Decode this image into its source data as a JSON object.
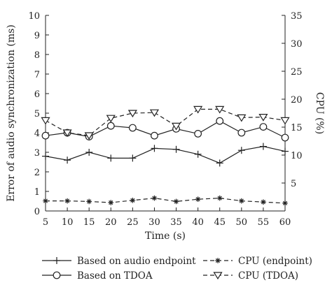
{
  "chart_data": {
    "type": "line",
    "x": [
      5,
      10,
      15,
      20,
      25,
      30,
      35,
      40,
      45,
      50,
      55,
      60
    ],
    "x_ticks": [
      "5",
      "10",
      "15",
      "20",
      "25",
      "30",
      "35",
      "40",
      "45",
      "50",
      "55",
      "60"
    ],
    "xlim": [
      5,
      60
    ],
    "xlabel": "Time (s)",
    "ylabel_left": "Error of audio synchronization (ms)",
    "ylim_left": [
      0,
      10
    ],
    "yticks_left": [
      "0",
      "1",
      "2",
      "3",
      "4",
      "5",
      "6",
      "7",
      "8",
      "9",
      "10"
    ],
    "ylabel_right": "CPU (%)",
    "ylim_right": [
      0,
      35
    ],
    "yticks_right": [
      "5",
      "10",
      "15",
      "20",
      "25",
      "30",
      "35"
    ],
    "grid": false,
    "legend_position": "bottom",
    "series": [
      {
        "name": "Based on audio endpoint",
        "axis": "left",
        "line": "solid",
        "marker": "plus",
        "values": [
          2.8,
          2.6,
          3.0,
          2.7,
          2.7,
          3.2,
          3.15,
          2.9,
          2.45,
          3.1,
          3.3,
          3.05
        ]
      },
      {
        "name": "Based on TDOA",
        "axis": "left",
        "line": "solid",
        "marker": "circle",
        "values": [
          3.85,
          4.0,
          3.8,
          4.35,
          4.25,
          3.85,
          4.2,
          3.95,
          4.6,
          4.0,
          4.3,
          3.75
        ]
      },
      {
        "name": "CPU (endpoint)",
        "axis": "right",
        "line": "dashed",
        "marker": "asterisk",
        "values": [
          1.8,
          1.8,
          1.7,
          1.5,
          1.9,
          2.3,
          1.7,
          2.1,
          2.3,
          1.8,
          1.6,
          1.4
        ]
      },
      {
        "name": "CPU (TDOA)",
        "axis": "right",
        "line": "dashed",
        "marker": "triangle-down",
        "values": [
          16.2,
          14.0,
          13.5,
          16.6,
          17.5,
          17.6,
          15.2,
          18.2,
          18.2,
          16.7,
          16.8,
          16.2
        ]
      }
    ]
  }
}
